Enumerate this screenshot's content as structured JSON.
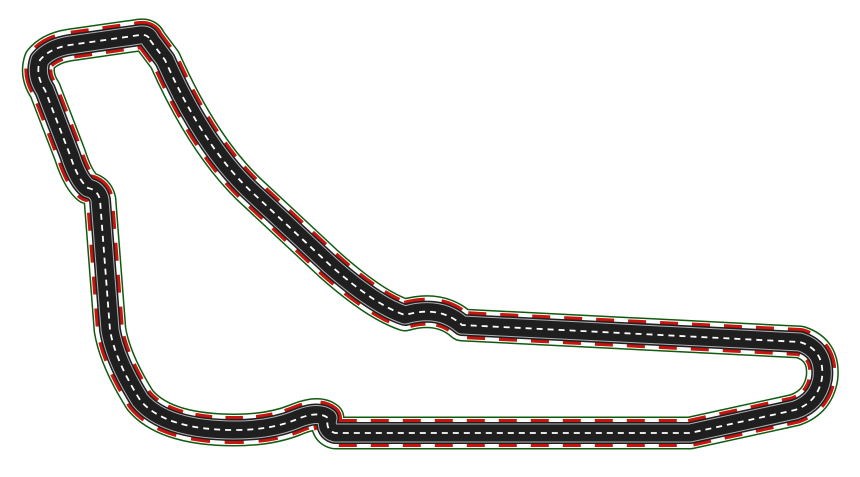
{
  "scene": {
    "type": "race-track-top-view",
    "background_color": "#ffffff"
  },
  "track": {
    "asphalt_color": "#1f1f1f",
    "grass_border_color": "#0f5a0f",
    "kerb_colors": [
      "#c8140f",
      "#f2f2f2"
    ],
    "lane_marking_color": "#ffffff",
    "edge_line_color": "#ffffff"
  }
}
